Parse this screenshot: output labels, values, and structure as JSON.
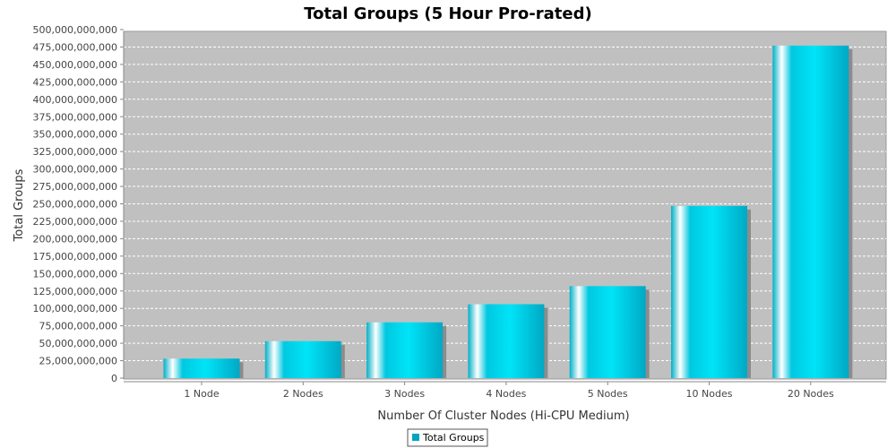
{
  "chart_data": {
    "type": "bar",
    "title": "Total Groups (5 Hour Pro-rated)",
    "xlabel": "Number Of Cluster Nodes (Hi-CPU Medium)",
    "ylabel": "Total Groups",
    "categories": [
      "1 Node",
      "2 Nodes",
      "3 Nodes",
      "4 Nodes",
      "5 Nodes",
      "10 Nodes",
      "20 Nodes"
    ],
    "series": [
      {
        "name": "Total Groups",
        "values": [
          28000000000,
          53000000000,
          80000000000,
          106000000000,
          132000000000,
          247000000000,
          477000000000
        ]
      }
    ],
    "ylim": [
      0,
      500000000000
    ],
    "yticks": [
      0,
      25000000000,
      50000000000,
      75000000000,
      100000000000,
      125000000000,
      150000000000,
      175000000000,
      200000000000,
      225000000000,
      250000000000,
      275000000000,
      300000000000,
      325000000000,
      350000000000,
      375000000000,
      400000000000,
      425000000000,
      450000000000,
      475000000000,
      500000000000
    ],
    "ytick_labels": [
      "0",
      "25,000,000,000",
      "50,000,000,000",
      "75,000,000,000",
      "100,000,000,000",
      "125,000,000,000",
      "150,000,000,000",
      "175,000,000,000",
      "200,000,000,000",
      "225,000,000,000",
      "250,000,000,000",
      "275,000,000,000",
      "300,000,000,000",
      "325,000,000,000",
      "350,000,000,000",
      "375,000,000,000",
      "400,000,000,000",
      "425,000,000,000",
      "450,000,000,000",
      "475,000,000,000",
      "500,000,000,000"
    ],
    "grid": true,
    "legend": "bottom-center",
    "colors": {
      "bar": "#00c8e0",
      "bar_light": "#ffffff",
      "bar_dark": "#0098b0",
      "plot_bg": "#c0c0c0",
      "grid": "#ffffff",
      "shadow": "#8c8c8c",
      "legend_swatch": "#00a4c0"
    }
  }
}
